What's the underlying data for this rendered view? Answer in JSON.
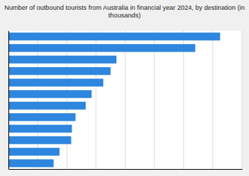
{
  "chart_data": {
    "type": "bar",
    "orientation": "horizontal",
    "title": "Number of outbound tourists from Australia in financial year 2024, by destination (in\nthousands)",
    "categories": [
      null,
      null,
      null,
      null,
      null,
      null,
      null,
      null,
      null,
      null,
      null,
      null
    ],
    "values": [
      1450,
      1280,
      740,
      700,
      650,
      570,
      530,
      460,
      435,
      430,
      350,
      310
    ],
    "color": "#2E86DE",
    "xlim": [
      0,
      1600
    ],
    "xticks": [
      0,
      200,
      400,
      600,
      800,
      1000,
      1200,
      1400,
      1600
    ],
    "grid": true,
    "tick_labels": false
  }
}
